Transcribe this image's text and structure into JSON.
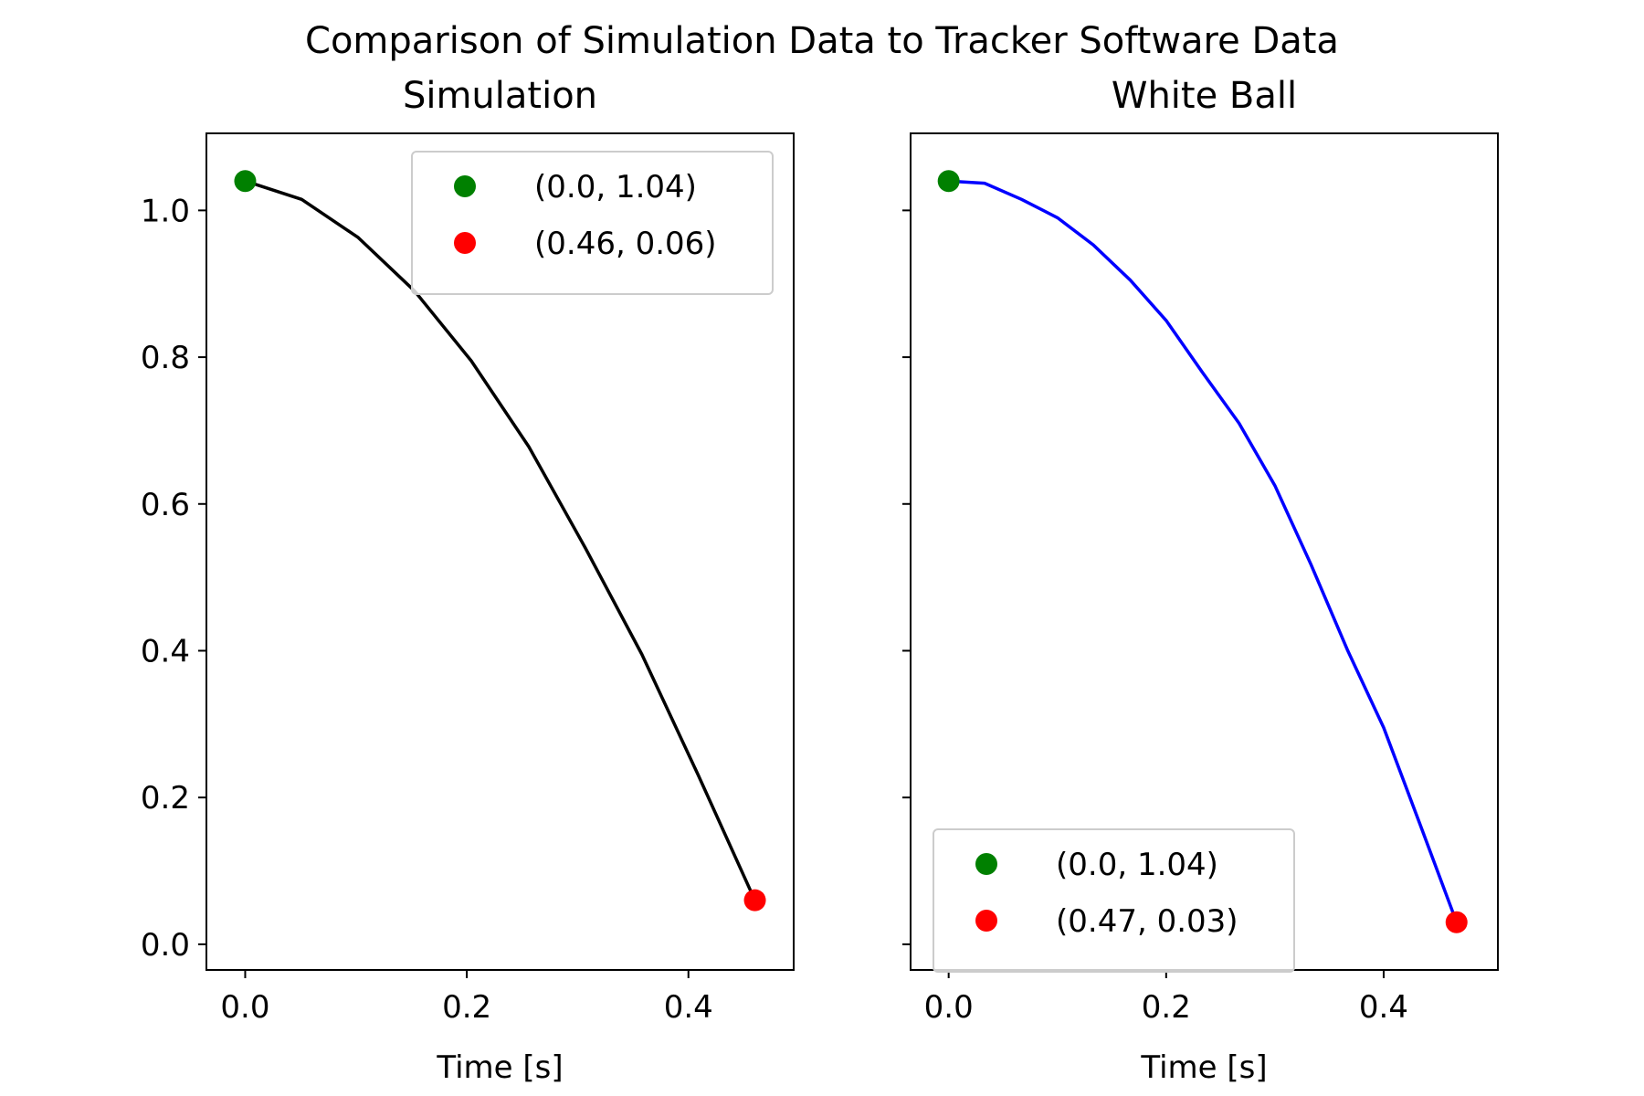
{
  "figure": {
    "suptitle": "Comparison of Simulation Data to Tracker Software Data"
  },
  "chart_data": [
    {
      "type": "line",
      "title": "Simulation",
      "xlabel": "Time [s]",
      "ylabel": "",
      "xlim": [
        -0.035,
        0.495
      ],
      "ylim": [
        -0.035,
        1.105
      ],
      "xticks": [
        0.0,
        0.2,
        0.4
      ],
      "xtick_labels": [
        "0.0",
        "0.2",
        "0.4"
      ],
      "yticks": [
        0.0,
        0.2,
        0.4,
        0.6,
        0.8,
        1.0
      ],
      "ytick_labels": [
        "0.0",
        "0.2",
        "0.4",
        "0.6",
        "0.8",
        "1.0"
      ],
      "show_ytick_labels": true,
      "grid": false,
      "line": {
        "color": "#000000",
        "x": [
          0.0,
          0.051,
          0.102,
          0.153,
          0.204,
          0.256,
          0.307,
          0.358,
          0.409,
          0.46
        ],
        "y": [
          1.04,
          1.015,
          0.963,
          0.89,
          0.795,
          0.678,
          0.54,
          0.395,
          0.23,
          0.06
        ]
      },
      "points": [
        {
          "x": 0.0,
          "y": 1.04,
          "color": "#008000"
        },
        {
          "x": 0.46,
          "y": 0.06,
          "color": "#ff0000"
        }
      ],
      "legend": {
        "position": "upper-right",
        "entries": [
          {
            "label": "(0.0, 1.04)",
            "color": "#008000"
          },
          {
            "label": "(0.46, 0.06)",
            "color": "#ff0000"
          }
        ]
      }
    },
    {
      "type": "line",
      "title": "White Ball",
      "xlabel": "Time [s]",
      "ylabel": "",
      "xlim": [
        -0.035,
        0.505
      ],
      "ylim": [
        -0.035,
        1.105
      ],
      "xticks": [
        0.0,
        0.2,
        0.4
      ],
      "xtick_labels": [
        "0.0",
        "0.2",
        "0.4"
      ],
      "yticks": [
        0.0,
        0.2,
        0.4,
        0.6,
        0.8,
        1.0
      ],
      "ytick_labels": [
        "0.0",
        "0.2",
        "0.4",
        "0.6",
        "0.8",
        "1.0"
      ],
      "show_ytick_labels": false,
      "grid": false,
      "line": {
        "color": "#0000ff",
        "x": [
          0.0,
          0.033,
          0.067,
          0.1,
          0.133,
          0.167,
          0.2,
          0.233,
          0.267,
          0.3,
          0.333,
          0.367,
          0.4,
          0.433,
          0.467
        ],
        "y": [
          1.04,
          1.037,
          1.015,
          0.99,
          0.953,
          0.905,
          0.85,
          0.78,
          0.71,
          0.625,
          0.518,
          0.4,
          0.295,
          0.165,
          0.03
        ]
      },
      "points": [
        {
          "x": 0.0,
          "y": 1.04,
          "color": "#008000"
        },
        {
          "x": 0.467,
          "y": 0.03,
          "color": "#ff0000"
        }
      ],
      "legend": {
        "position": "lower-left",
        "entries": [
          {
            "label": "(0.0, 1.04)",
            "color": "#008000"
          },
          {
            "label": "(0.47, 0.03)",
            "color": "#ff0000"
          }
        ]
      }
    }
  ]
}
